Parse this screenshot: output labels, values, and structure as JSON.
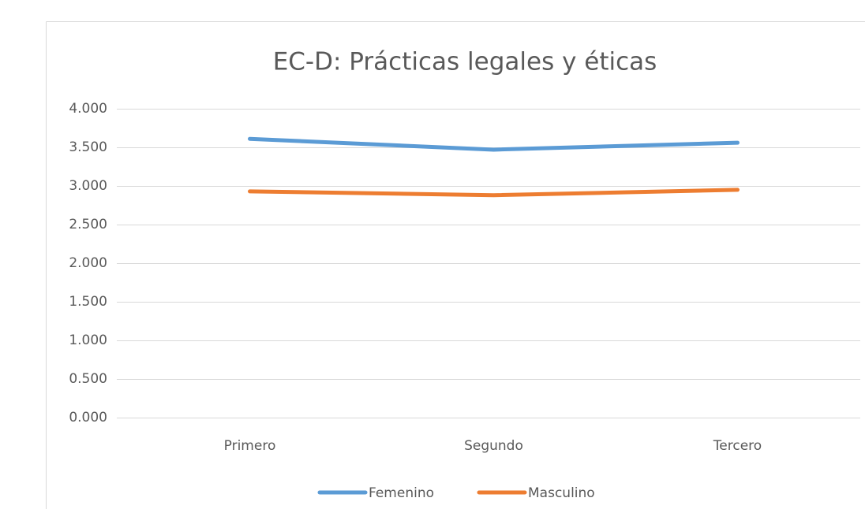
{
  "chart_data": {
    "type": "line",
    "title": "EC-D: Prácticas legales y éticas",
    "categories": [
      "Primero",
      "Segundo",
      "Tercero"
    ],
    "series": [
      {
        "name": "Femenino",
        "color": "#5b9bd5",
        "values": [
          3.61,
          3.47,
          3.56
        ]
      },
      {
        "name": "Masculino",
        "color": "#ed7d31",
        "values": [
          2.93,
          2.88,
          2.95
        ]
      }
    ],
    "ylim": [
      0,
      4
    ],
    "yticks": [
      {
        "value": 0,
        "label": "0.000"
      },
      {
        "value": 0.5,
        "label": "0.500"
      },
      {
        "value": 1,
        "label": "1.000"
      },
      {
        "value": 1.5,
        "label": "1.500"
      },
      {
        "value": 2,
        "label": "2.000"
      },
      {
        "value": 2.5,
        "label": "2.500"
      },
      {
        "value": 3,
        "label": "3.000"
      },
      {
        "value": 3.5,
        "label": "3.500"
      },
      {
        "value": 4,
        "label": "4.000"
      }
    ],
    "grid": true,
    "legend": "bottom"
  }
}
